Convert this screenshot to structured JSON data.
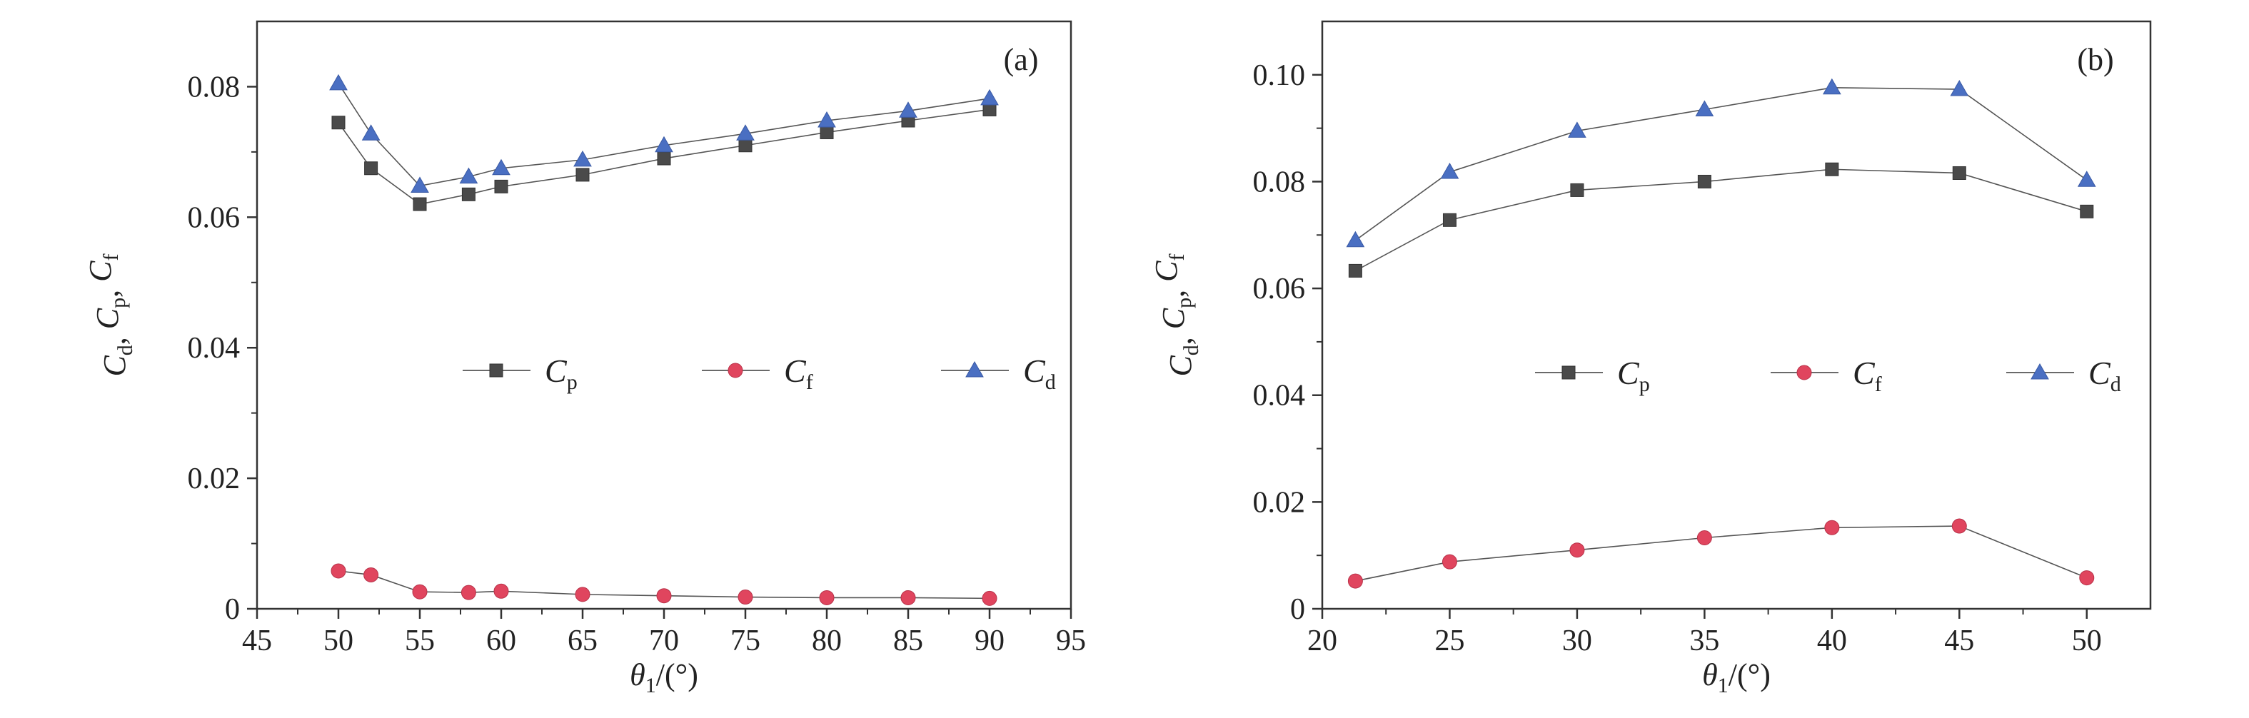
{
  "chart_data": [
    {
      "type": "line",
      "panel_label": "(a)",
      "xlabel": "θ1/(°)",
      "ylabel": "Cd, Cp, Cf",
      "xlim": [
        45,
        95
      ],
      "ylim": [
        0,
        0.09
      ],
      "xticks": [
        "45",
        "50",
        "55",
        "60",
        "65",
        "70",
        "75",
        "80",
        "85",
        "90",
        "95"
      ],
      "yticks": [
        "0",
        "0.02",
        "0.04",
        "0.06",
        "0.08"
      ],
      "x": [
        50,
        52,
        55,
        58,
        60,
        65,
        70,
        75,
        80,
        85,
        90
      ],
      "series": [
        {
          "name": "Cp",
          "marker": "square",
          "color": "#4a4a4a",
          "values": [
            0.0745,
            0.0675,
            0.062,
            0.0635,
            0.0647,
            0.0665,
            0.069,
            0.071,
            0.073,
            0.0748,
            0.0765
          ]
        },
        {
          "name": "Cf",
          "marker": "circle",
          "color": "#e0455e",
          "values": [
            0.0058,
            0.0052,
            0.0026,
            0.0025,
            0.0027,
            0.0022,
            0.002,
            0.0018,
            0.0017,
            0.0017,
            0.0016
          ]
        },
        {
          "name": "Cd",
          "marker": "triangle",
          "color": "#4a6fc2",
          "values": [
            0.0805,
            0.0728,
            0.0648,
            0.0662,
            0.0675,
            0.0688,
            0.071,
            0.0728,
            0.0748,
            0.0763,
            0.0782
          ]
        }
      ],
      "legend": {
        "placement": "center",
        "entries": [
          "Cp",
          "Cf",
          "Cd"
        ]
      },
      "grid": false
    },
    {
      "type": "line",
      "panel_label": "(b)",
      "xlabel": "θ1/(°)",
      "ylabel": "Cd, Cp, Cf",
      "xlim": [
        20,
        52.5
      ],
      "ylim": [
        0,
        0.11
      ],
      "xticks": [
        "20",
        "25",
        "30",
        "35",
        "40",
        "45",
        "50"
      ],
      "yticks": [
        "0",
        "0.02",
        "0.04",
        "0.06",
        "0.08",
        "0.10"
      ],
      "x": [
        21.3,
        25,
        30,
        35,
        40,
        45,
        50
      ],
      "series": [
        {
          "name": "Cp",
          "marker": "square",
          "color": "#4a4a4a",
          "values": [
            0.0633,
            0.0728,
            0.0784,
            0.08,
            0.0823,
            0.0816,
            0.0744
          ]
        },
        {
          "name": "Cf",
          "marker": "circle",
          "color": "#e0455e",
          "values": [
            0.0052,
            0.0088,
            0.011,
            0.0133,
            0.0152,
            0.0155,
            0.0058
          ]
        },
        {
          "name": "Cd",
          "marker": "triangle",
          "color": "#4a6fc2",
          "values": [
            0.069,
            0.0818,
            0.0895,
            0.0935,
            0.0976,
            0.0973,
            0.0803
          ]
        }
      ],
      "legend": {
        "placement": "center",
        "entries": [
          "Cp",
          "Cf",
          "Cd"
        ]
      },
      "grid": false
    }
  ]
}
